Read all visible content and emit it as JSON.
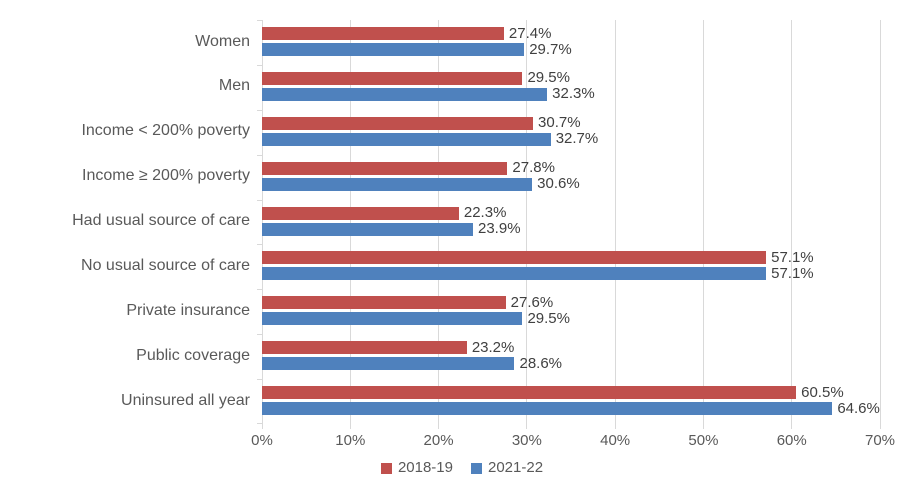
{
  "chart_data": {
    "type": "bar",
    "orientation": "horizontal",
    "title": "",
    "xlabel": "",
    "ylabel": "",
    "categories": [
      "Women",
      "Men",
      "Income < 200% poverty",
      "Income ≥ 200% poverty",
      "Had usual source of care",
      "No usual source of care",
      "Private insurance",
      "Public coverage",
      "Uninsured all year"
    ],
    "series": [
      {
        "name": "2018-19",
        "color": "#C0504D",
        "values": [
          27.4,
          29.5,
          30.7,
          27.8,
          22.3,
          57.1,
          27.6,
          23.2,
          60.5
        ]
      },
      {
        "name": "2021-22",
        "color": "#4F81BD",
        "values": [
          29.7,
          32.3,
          32.7,
          30.6,
          23.9,
          57.1,
          29.5,
          28.6,
          64.6
        ]
      }
    ],
    "xlim": [
      0,
      70
    ],
    "x_tick_step": 10,
    "x_tick_labels": [
      "0%",
      "10%",
      "20%",
      "30%",
      "40%",
      "50%",
      "60%",
      "70%"
    ],
    "data_labels_shown": true,
    "data_label_suffix": "%",
    "grid": "vertical",
    "legend_position": "bottom",
    "colors": {
      "gridline": "#D9D9D9",
      "axis_line": "#D9D9D9",
      "tick_text": "#595959",
      "category_text": "#595959",
      "data_label_text": "#404040",
      "legend_text": "#595959",
      "background": "#FFFFFF"
    }
  }
}
